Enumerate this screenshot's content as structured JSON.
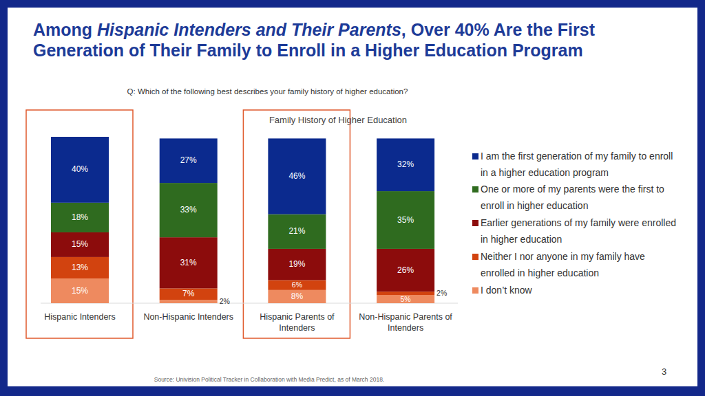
{
  "chart_data": {
    "type": "bar",
    "title": "Among Hispanic Intenders and Their Parents, Over 40% Are the First Generation of Their Family to Enroll in a Higher Education Program",
    "title_italic": "Hispanic Intenders and Their Parents",
    "question": "Q: Which of the following best describes your family history of higher education?",
    "subtitle": "Family History of Higher Education",
    "source": "Source: Univision Political Tracker in Collaboration with Media Predict, as of March 2018.",
    "page_number": "3",
    "categories": [
      "Hispanic Intenders",
      "Non-Hispanic Intenders",
      "Hispanic Parents of Intenders",
      "Non-Hispanic Parents of Intenders"
    ],
    "series": [
      {
        "name": "I am the first generation of my family to enroll in a higher education program",
        "color": "#0b2a8e",
        "values": [
          40,
          27,
          46,
          32
        ],
        "value_labels": [
          "40%",
          "27%",
          "46%",
          "32%"
        ]
      },
      {
        "name": "One or more of my parents were the first to enroll in higher education",
        "color": "#2f6b1f",
        "values": [
          18,
          33,
          21,
          35
        ],
        "value_labels": [
          "18%",
          "33%",
          "21%",
          "35%"
        ]
      },
      {
        "name": "Earlier generations of my family were enrolled in higher education",
        "color": "#8c0c0c",
        "values": [
          15,
          31,
          19,
          26
        ],
        "value_labels": [
          "15%",
          "31%",
          "19%",
          "26%"
        ]
      },
      {
        "name": "Neither I nor anyone in my family have enrolled in higher education",
        "color": "#d2430f",
        "values": [
          13,
          7,
          6,
          2
        ],
        "value_labels": [
          "13%",
          "7%",
          "6%",
          "2%"
        ]
      },
      {
        "name": "I don’t know",
        "color": "#ee8a5f",
        "values": [
          15,
          2,
          8,
          5
        ],
        "value_labels": [
          "15%",
          "2%",
          "8%",
          "5%"
        ]
      }
    ],
    "ylim": [
      0,
      101
    ],
    "stacked": true,
    "data_labels": true,
    "tick_labels": false,
    "legend": "right"
  }
}
